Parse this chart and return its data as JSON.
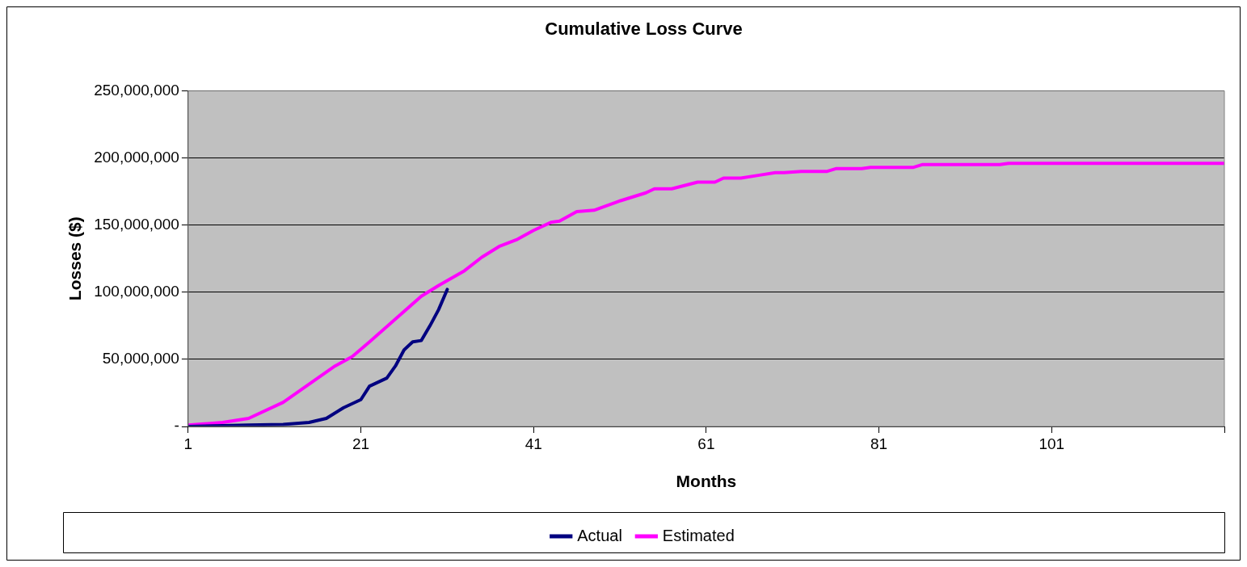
{
  "chart_data": {
    "type": "line",
    "title": "Cumulative Loss Curve",
    "xlabel": "Months",
    "ylabel": "Losses ($)",
    "xlim": [
      1,
      121
    ],
    "xticks": [
      1,
      21,
      41,
      61,
      81,
      101,
      {
        "value": 121,
        "label": null
      }
    ],
    "ylim": [
      0,
      250000000
    ],
    "yticks": [
      {
        "value": 0,
        "label": "-"
      },
      {
        "value": 50000000,
        "label": "50,000,000"
      },
      {
        "value": 100000000,
        "label": "100,000,000"
      },
      {
        "value": 150000000,
        "label": "150,000,000"
      },
      {
        "value": 200000000,
        "label": "200,000,000"
      },
      {
        "value": 250000000,
        "label": "250,000,000"
      }
    ],
    "grid": "y",
    "legend": "bottom",
    "marker": "none",
    "line_style": "solid",
    "series": [
      {
        "name": "Actual",
        "color": "#000080",
        "x": [
          1,
          8,
          12,
          15,
          17,
          19,
          21,
          22,
          24,
          25,
          26,
          27,
          28,
          29,
          30,
          31
        ],
        "values": [
          0,
          1000000,
          1500000,
          3000000,
          6000000,
          14000000,
          20000000,
          30000000,
          36000000,
          45000000,
          57000000,
          63000000,
          64000000,
          75000000,
          87000000,
          102000000
        ]
      },
      {
        "name": "Estimated",
        "color": "#ff00ff",
        "x": [
          1,
          5,
          8,
          12,
          14,
          18,
          20,
          22,
          25,
          28,
          30,
          33,
          35,
          37,
          39,
          41,
          43,
          44,
          46,
          48,
          51,
          54,
          55,
          57,
          60,
          62,
          63,
          65,
          67,
          69,
          70,
          72,
          75,
          76,
          79,
          80,
          85,
          86,
          95,
          96,
          121
        ],
        "values": [
          1000000,
          3000000,
          6000000,
          18000000,
          27000000,
          45000000,
          52000000,
          63000000,
          80000000,
          97000000,
          105000000,
          116000000,
          126000000,
          134000000,
          139000000,
          146000000,
          152000000,
          153000000,
          160000000,
          161000000,
          168000000,
          174000000,
          177000000,
          177000000,
          182000000,
          182000000,
          185000000,
          185000000,
          187000000,
          189000000,
          189000000,
          190000000,
          190000000,
          192000000,
          192000000,
          193000000,
          193000000,
          195000000,
          195000000,
          196000000,
          196000000
        ]
      }
    ]
  }
}
